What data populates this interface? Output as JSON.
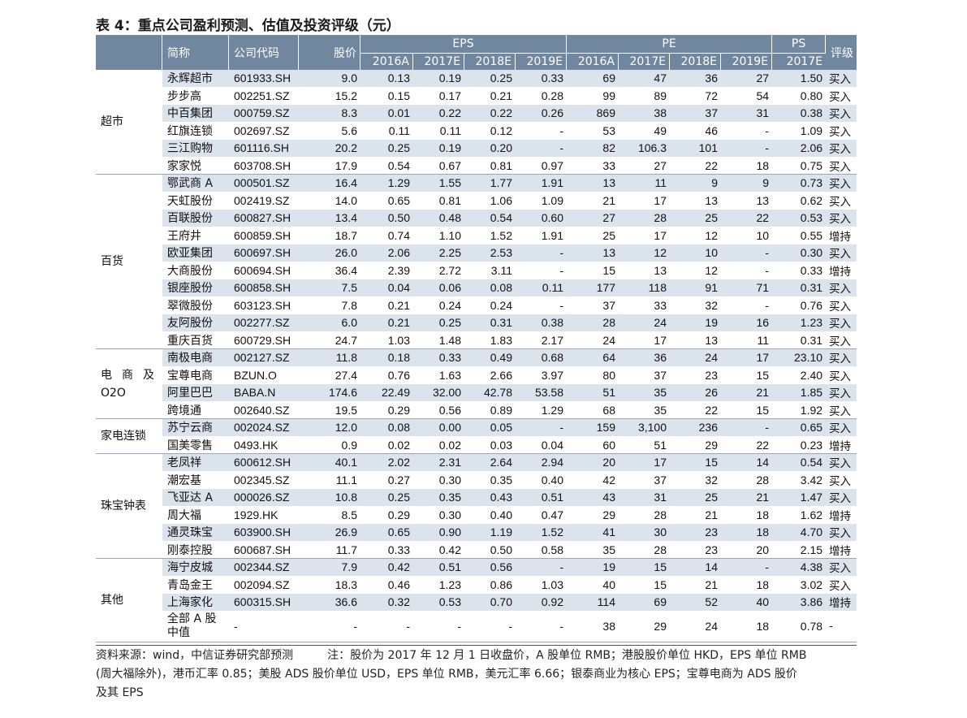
{
  "title": "表 4：重点公司盈利预测、估值及投资评级（元）",
  "header": {
    "name": "简称",
    "code": "公司代码",
    "price": "股价",
    "eps_group": "EPS",
    "pe_group": "PE",
    "ps_group": "PS",
    "rating": "评级",
    "eps_years": [
      "2016A",
      "2017E",
      "2018E",
      "2019E"
    ],
    "pe_years": [
      "2016A",
      "2017E",
      "2018E",
      "2019E"
    ],
    "ps_years": [
      "2017E"
    ]
  },
  "groups": [
    {
      "category": "超市",
      "rows": [
        {
          "name": "永辉超市",
          "code": "601933.SH",
          "price": "9.0",
          "eps": [
            "0.13",
            "0.19",
            "0.25",
            "0.33"
          ],
          "pe": [
            "69",
            "47",
            "36",
            "27"
          ],
          "ps": "1.50",
          "rating": "买入"
        },
        {
          "name": "步步高",
          "code": "002251.SZ",
          "price": "15.2",
          "eps": [
            "0.15",
            "0.17",
            "0.21",
            "0.28"
          ],
          "pe": [
            "99",
            "89",
            "72",
            "54"
          ],
          "ps": "0.80",
          "rating": "买入"
        },
        {
          "name": "中百集团",
          "code": "000759.SZ",
          "price": "8.3",
          "eps": [
            "0.01",
            "0.22",
            "0.22",
            "0.26"
          ],
          "pe": [
            "869",
            "38",
            "37",
            "31"
          ],
          "ps": "0.38",
          "rating": "买入"
        },
        {
          "name": "红旗连锁",
          "code": "002697.SZ",
          "price": "5.6",
          "eps": [
            "0.11",
            "0.11",
            "0.12",
            "-"
          ],
          "pe": [
            "53",
            "49",
            "46",
            "-"
          ],
          "ps": "1.09",
          "rating": "买入"
        },
        {
          "name": "三江购物",
          "code": "601116.SH",
          "price": "20.2",
          "eps": [
            "0.25",
            "0.19",
            "0.20",
            "-"
          ],
          "pe": [
            "82",
            "106.3",
            "101",
            "-"
          ],
          "ps": "2.06",
          "rating": "买入"
        },
        {
          "name": "家家悦",
          "code": "603708.SH",
          "price": "17.9",
          "eps": [
            "0.54",
            "0.67",
            "0.81",
            "0.97"
          ],
          "pe": [
            "33",
            "27",
            "22",
            "18"
          ],
          "ps": "0.75",
          "rating": "买入"
        }
      ]
    },
    {
      "category": "百货",
      "rows": [
        {
          "name": "鄂武商 A",
          "code": "000501.SZ",
          "price": "16.4",
          "eps": [
            "1.29",
            "1.55",
            "1.77",
            "1.91"
          ],
          "pe": [
            "13",
            "11",
            "9",
            "9"
          ],
          "ps": "0.73",
          "rating": "买入"
        },
        {
          "name": "天虹股份",
          "code": "002419.SZ",
          "price": "14.0",
          "eps": [
            "0.65",
            "0.81",
            "1.06",
            "1.09"
          ],
          "pe": [
            "21",
            "17",
            "13",
            "13"
          ],
          "ps": "0.62",
          "rating": "买入"
        },
        {
          "name": "百联股份",
          "code": "600827.SH",
          "price": "13.4",
          "eps": [
            "0.50",
            "0.48",
            "0.54",
            "0.60"
          ],
          "pe": [
            "27",
            "28",
            "25",
            "22"
          ],
          "ps": "0.53",
          "rating": "买入"
        },
        {
          "name": "王府井",
          "code": "600859.SH",
          "price": "18.7",
          "eps": [
            "0.74",
            "1.10",
            "1.52",
            "1.91"
          ],
          "pe": [
            "25",
            "17",
            "12",
            "10"
          ],
          "ps": "0.55",
          "rating": "增持"
        },
        {
          "name": "欧亚集团",
          "code": "600697.SH",
          "price": "26.0",
          "eps": [
            "2.06",
            "2.25",
            "2.53",
            "-"
          ],
          "pe": [
            "13",
            "12",
            "10",
            "-"
          ],
          "ps": "0.30",
          "rating": "买入"
        },
        {
          "name": "大商股份",
          "code": "600694.SH",
          "price": "36.4",
          "eps": [
            "2.39",
            "2.72",
            "3.11",
            "-"
          ],
          "pe": [
            "15",
            "13",
            "12",
            "-"
          ],
          "ps": "0.33",
          "rating": "增持"
        },
        {
          "name": "银座股份",
          "code": "600858.SH",
          "price": "7.5",
          "eps": [
            "0.04",
            "0.06",
            "0.08",
            "0.11"
          ],
          "pe": [
            "177",
            "118",
            "91",
            "71"
          ],
          "ps": "0.31",
          "rating": "买入"
        },
        {
          "name": "翠微股份",
          "code": "603123.SH",
          "price": "7.8",
          "eps": [
            "0.21",
            "0.24",
            "0.24",
            "-"
          ],
          "pe": [
            "37",
            "33",
            "32",
            "-"
          ],
          "ps": "0.76",
          "rating": "买入"
        },
        {
          "name": "友阿股份",
          "code": "002277.SZ",
          "price": "6.0",
          "eps": [
            "0.21",
            "0.25",
            "0.31",
            "0.38"
          ],
          "pe": [
            "28",
            "24",
            "19",
            "16"
          ],
          "ps": "1.23",
          "rating": "买入"
        },
        {
          "name": "重庆百货",
          "code": "600729.SH",
          "price": "24.7",
          "eps": [
            "1.03",
            "1.48",
            "1.83",
            "2.17"
          ],
          "pe": [
            "24",
            "17",
            "13",
            "11"
          ],
          "ps": "0.31",
          "rating": "买入"
        }
      ]
    },
    {
      "category": "电 商 及 O2O",
      "rows": [
        {
          "name": "南极电商",
          "code": "002127.SZ",
          "price": "11.8",
          "eps": [
            "0.18",
            "0.33",
            "0.49",
            "0.68"
          ],
          "pe": [
            "64",
            "36",
            "24",
            "17"
          ],
          "ps": "23.10",
          "rating": "买入"
        },
        {
          "name": "宝尊电商",
          "code": "BZUN.O",
          "price": "27.4",
          "eps": [
            "0.76",
            "1.63",
            "2.66",
            "3.97"
          ],
          "pe": [
            "80",
            "37",
            "23",
            "15"
          ],
          "ps": "2.40",
          "rating": "买入"
        },
        {
          "name": "阿里巴巴",
          "code": "BABA.N",
          "price": "174.6",
          "eps": [
            "22.49",
            "32.00",
            "42.78",
            "53.58"
          ],
          "pe": [
            "51",
            "35",
            "26",
            "21"
          ],
          "ps": "1.85",
          "rating": "买入"
        },
        {
          "name": "跨境通",
          "code": "002640.SZ",
          "price": "19.5",
          "eps": [
            "0.29",
            "0.56",
            "0.89",
            "1.29"
          ],
          "pe": [
            "68",
            "35",
            "22",
            "15"
          ],
          "ps": "1.92",
          "rating": "买入"
        }
      ]
    },
    {
      "category": "家电连锁",
      "rows": [
        {
          "name": "苏宁云商",
          "code": "002024.SZ",
          "price": "12.0",
          "eps": [
            "0.08",
            "0.00",
            "0.05",
            "-"
          ],
          "pe": [
            "159",
            "3,100",
            "236",
            "-"
          ],
          "ps": "0.65",
          "rating": "买入"
        },
        {
          "name": "国美零售",
          "code": "0493.HK",
          "price": "0.9",
          "eps": [
            "0.02",
            "0.02",
            "0.03",
            "0.04"
          ],
          "pe": [
            "60",
            "51",
            "29",
            "22"
          ],
          "ps": "0.23",
          "rating": "增持"
        }
      ]
    },
    {
      "category": "珠宝钟表",
      "rows": [
        {
          "name": "老凤祥",
          "code": "600612.SH",
          "price": "40.1",
          "eps": [
            "2.02",
            "2.31",
            "2.64",
            "2.94"
          ],
          "pe": [
            "20",
            "17",
            "15",
            "14"
          ],
          "ps": "0.54",
          "rating": "买入"
        },
        {
          "name": "潮宏基",
          "code": "002345.SZ",
          "price": "11.1",
          "eps": [
            "0.27",
            "0.30",
            "0.35",
            "0.40"
          ],
          "pe": [
            "42",
            "37",
            "32",
            "28"
          ],
          "ps": "3.42",
          "rating": "买入"
        },
        {
          "name": "飞亚达 A",
          "code": "000026.SZ",
          "price": "10.8",
          "eps": [
            "0.25",
            "0.35",
            "0.43",
            "0.51"
          ],
          "pe": [
            "43",
            "31",
            "25",
            "21"
          ],
          "ps": "1.47",
          "rating": "买入"
        },
        {
          "name": "周大福",
          "code": "1929.HK",
          "price": "8.5",
          "eps": [
            "0.29",
            "0.30",
            "0.40",
            "0.47"
          ],
          "pe": [
            "29",
            "28",
            "21",
            "18"
          ],
          "ps": "1.62",
          "rating": "增持"
        },
        {
          "name": "通灵珠宝",
          "code": "603900.SH",
          "price": "26.9",
          "eps": [
            "0.65",
            "0.90",
            "1.19",
            "1.52"
          ],
          "pe": [
            "41",
            "30",
            "23",
            "18"
          ],
          "ps": "4.70",
          "rating": "买入"
        },
        {
          "name": "刚泰控股",
          "code": "600687.SH",
          "price": "11.7",
          "eps": [
            "0.33",
            "0.42",
            "0.50",
            "0.58"
          ],
          "pe": [
            "35",
            "28",
            "23",
            "20"
          ],
          "ps": "2.15",
          "rating": "增持"
        }
      ]
    },
    {
      "category": "其他",
      "rows": [
        {
          "name": "海宁皮城",
          "code": "002344.SZ",
          "price": "7.9",
          "eps": [
            "0.42",
            "0.51",
            "0.56",
            "-"
          ],
          "pe": [
            "19",
            "15",
            "14",
            "-"
          ],
          "ps": "4.38",
          "rating": "买入"
        },
        {
          "name": "青岛金王",
          "code": "002094.SZ",
          "price": "18.3",
          "eps": [
            "0.46",
            "1.23",
            "0.86",
            "1.03"
          ],
          "pe": [
            "40",
            "15",
            "21",
            "18"
          ],
          "ps": "3.02",
          "rating": "买入"
        },
        {
          "name": "上海家化",
          "code": "600315.SH",
          "price": "36.6",
          "eps": [
            "0.32",
            "0.53",
            "0.70",
            "0.92"
          ],
          "pe": [
            "114",
            "69",
            "52",
            "40"
          ],
          "ps": "3.86",
          "rating": "增持"
        },
        {
          "name": "全部 A 股中值",
          "code": "-",
          "price": "-",
          "eps": [
            "-",
            "-",
            "-",
            "-"
          ],
          "pe": [
            "38",
            "29",
            "24",
            "18"
          ],
          "ps": "0.78",
          "rating": "-"
        }
      ]
    }
  ],
  "footer": {
    "line1": "资料来源：wind，中信证券研究部预测　　　注：股价为 2017 年 12 月 1 日收盘价，A 股单位 RMB；港股股价单位 HKD，EPS 单位 RMB",
    "line2": "(周大福除外)，港币汇率 0.85；美股 ADS 股价单位 USD，EPS 单位 RMB，美元汇率 6.66；银泰商业为核心 EPS；宝尊电商为 ADS 股价",
    "line3": "及其 EPS"
  }
}
